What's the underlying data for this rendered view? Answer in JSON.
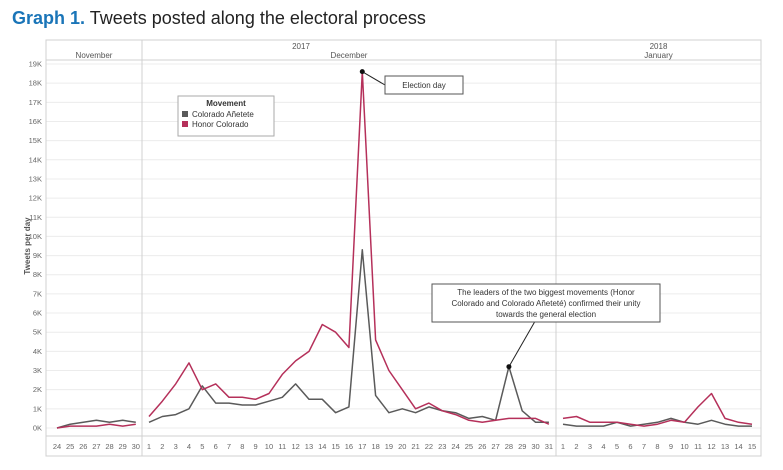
{
  "figure": {
    "label": "Graph 1.",
    "title": "Tweets posted along the electoral process"
  },
  "chart_data": {
    "type": "line",
    "ylabel": "Tweets per day",
    "ylim": [
      0,
      19000
    ],
    "yticks": [
      "0K",
      "1K",
      "2K",
      "3K",
      "4K",
      "5K",
      "6K",
      "7K",
      "8K",
      "9K",
      "10K",
      "11K",
      "12K",
      "13K",
      "14K",
      "15K",
      "16K",
      "17K",
      "18K",
      "19K"
    ],
    "grid": true,
    "year_headers": [
      {
        "text": "2017",
        "spans_panels": [
          0,
          1
        ]
      },
      {
        "text": "2018",
        "spans_panels": [
          2
        ]
      }
    ],
    "panels": [
      {
        "month": "November",
        "days": [
          "24",
          "25",
          "26",
          "27",
          "28",
          "29",
          "30"
        ]
      },
      {
        "month": "December",
        "days": [
          "1",
          "2",
          "3",
          "4",
          "5",
          "6",
          "7",
          "8",
          "9",
          "10",
          "11",
          "12",
          "13",
          "14",
          "15",
          "16",
          "17",
          "18",
          "19",
          "20",
          "21",
          "22",
          "23",
          "24",
          "25",
          "26",
          "27",
          "28",
          "29",
          "30",
          "31"
        ]
      },
      {
        "month": "January",
        "days": [
          "1",
          "2",
          "3",
          "4",
          "5",
          "6",
          "7",
          "8",
          "9",
          "10",
          "11",
          "12",
          "13",
          "14",
          "15"
        ]
      }
    ],
    "legend": {
      "title": "Movement",
      "placement": "top-left"
    },
    "series": [
      {
        "name": "Colorado Añetete",
        "color": "#5a5a5a",
        "values": [
          [
            0,
            200,
            300,
            400,
            300,
            400,
            300
          ],
          [
            300,
            600,
            700,
            1000,
            2200,
            1300,
            1300,
            1200,
            1200,
            1400,
            1600,
            2300,
            1500,
            1500,
            800,
            1100,
            9300,
            1700,
            800,
            1000,
            800,
            1100,
            900,
            800,
            500,
            600,
            400,
            3200,
            900,
            300,
            300
          ],
          [
            200,
            100,
            100,
            100,
            300,
            100,
            200,
            300,
            500,
            300,
            200,
            400,
            200,
            100,
            100
          ]
        ]
      },
      {
        "name": "Honor Colorado",
        "color": "#b5305a",
        "values": [
          [
            0,
            100,
            100,
            100,
            200,
            100,
            200
          ],
          [
            600,
            1400,
            2300,
            3400,
            2000,
            2300,
            1600,
            1600,
            1500,
            1800,
            2800,
            3500,
            4000,
            5400,
            5000,
            4200,
            18600,
            4600,
            3000,
            2000,
            1000,
            1300,
            900,
            700,
            400,
            300,
            400,
            500,
            500,
            500,
            200
          ],
          [
            500,
            600,
            300,
            300,
            300,
            200,
            100,
            200,
            400,
            300,
            1100,
            1800,
            500,
            300,
            200
          ]
        ]
      }
    ],
    "annotations": [
      {
        "id": "election",
        "text_lines": [
          "Election day"
        ],
        "series": "Honor Colorado",
        "panel": 1,
        "day": "17"
      },
      {
        "id": "unity",
        "text_lines": [
          "The leaders of the two biggest movements (Honor",
          "Colorado and Colorado Añeteté) confirmed their unity",
          "towards the general election"
        ],
        "series": "Colorado Añetete",
        "panel": 1,
        "day": "28"
      }
    ]
  }
}
